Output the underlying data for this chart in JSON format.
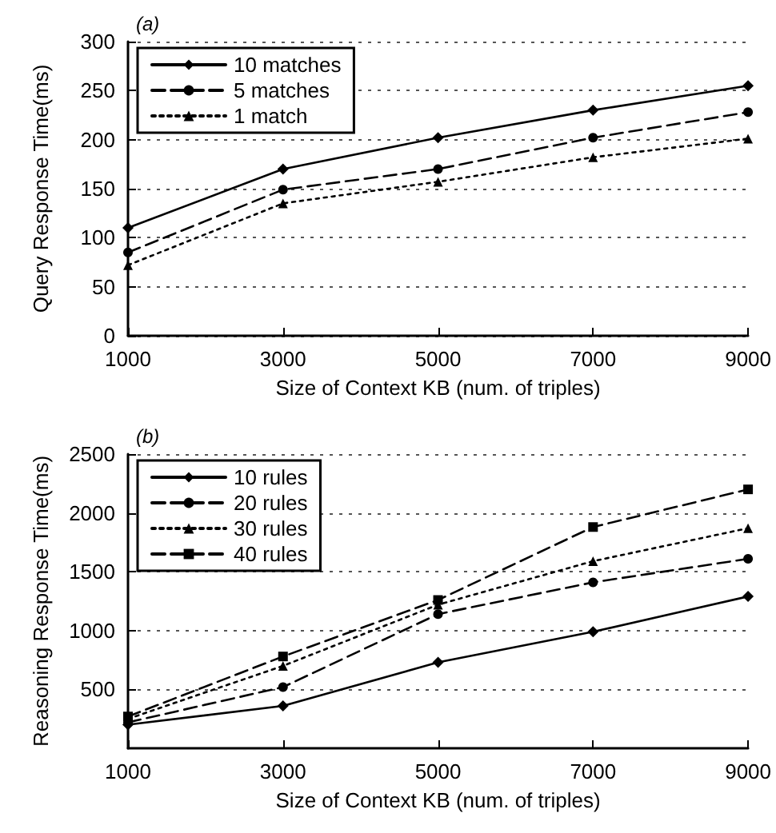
{
  "chart_data": [
    {
      "type": "line",
      "title": "(a)",
      "xlabel": "Size of Context KB (num. of triples)",
      "ylabel": "Query Response Time(ms)",
      "x": [
        1000,
        3000,
        5000,
        7000,
        9000
      ],
      "xlim": [
        1000,
        9000
      ],
      "xticks": [
        1000,
        3000,
        5000,
        7000,
        9000
      ],
      "ylim": [
        0,
        300
      ],
      "yticks": [
        0,
        50,
        100,
        150,
        200,
        250,
        300
      ],
      "grid": "y",
      "legend": "top left",
      "series": [
        {
          "name": "10 matches",
          "color": "#000000",
          "values": [
            110,
            170,
            202,
            230,
            255
          ],
          "marker": "diamond",
          "line_style": "solid"
        },
        {
          "name": "5 matches",
          "color": "#000000",
          "values": [
            85,
            149,
            170,
            202,
            228
          ],
          "marker": "circle",
          "line_style": "dashed"
        },
        {
          "name": "1 match",
          "color": "#000000",
          "values": [
            72,
            135,
            157,
            182,
            201
          ],
          "marker": "triangle",
          "line_style": "dotted"
        }
      ]
    },
    {
      "type": "line",
      "title": "(b)",
      "xlabel": "Size of Context KB (num. of triples)",
      "ylabel": "Reasoning Response Time(ms)",
      "x": [
        1000,
        3000,
        5000,
        7000,
        9000
      ],
      "xlim": [
        1000,
        9000
      ],
      "xticks": [
        1000,
        3000,
        5000,
        7000,
        9000
      ],
      "ylim": [
        0,
        2500
      ],
      "yticks": [
        500,
        1000,
        1500,
        2000,
        2500
      ],
      "grid": "y",
      "legend": "top left",
      "series": [
        {
          "name": "10 rules",
          "color": "#000000",
          "values": [
            200,
            360,
            730,
            990,
            1290
          ],
          "marker": "diamond",
          "line_style": "solid"
        },
        {
          "name": "20 rules",
          "color": "#000000",
          "values": [
            220,
            520,
            1140,
            1410,
            1610
          ],
          "marker": "circle",
          "line_style": "dashed"
        },
        {
          "name": "30 rules",
          "color": "#000000",
          "values": [
            250,
            700,
            1220,
            1590,
            1870
          ],
          "marker": "triangle",
          "line_style": "dotted"
        },
        {
          "name": "40 rules",
          "color": "#000000",
          "values": [
            270,
            780,
            1260,
            1880,
            2200
          ],
          "marker": "square",
          "line_style": "dashed"
        }
      ]
    }
  ]
}
